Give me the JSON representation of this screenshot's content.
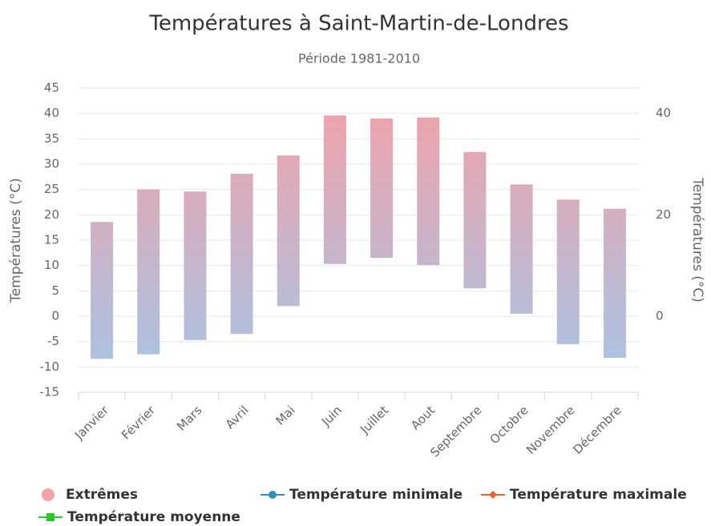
{
  "chart_data": {
    "type": "columnrange",
    "title": "Températures à Saint-Martin-de-Londres",
    "subtitle": "Période 1981-2010",
    "y_label": "Températures (°C)",
    "y2_label": "Températures (°C)",
    "categories": [
      "Janvier",
      "Février",
      "Mars",
      "Avril",
      "Mai",
      "Juin",
      "Juillet",
      "Aout",
      "Septembre",
      "Octobre",
      "Novembre",
      "Décembre"
    ],
    "series": [
      {
        "name": "Extrêmes",
        "color": "#f7a2a6",
        "gradient": [
          "#f4a0a6",
          "#a3c6e8"
        ],
        "low": [
          -8.4,
          -7.5,
          -4.7,
          -3.5,
          2,
          10.3,
          11.5,
          10.1,
          5.5,
          0.5,
          -5.5,
          -8.2
        ],
        "high": [
          18.6,
          25,
          24.6,
          28.1,
          31.7,
          39.6,
          39,
          39.2,
          32.4,
          26,
          23,
          21.2
        ]
      },
      {
        "name": "Température minimale",
        "color": "#2f8fc4",
        "marker": "circle"
      },
      {
        "name": "Température maximale",
        "color": "#e8622a",
        "marker": "diamond"
      },
      {
        "name": "Température moyenne",
        "color": "#22cc22",
        "marker": "square"
      }
    ],
    "ylim": [
      -15,
      45
    ],
    "yticks": [
      -15,
      -10,
      -5,
      0,
      5,
      10,
      15,
      20,
      25,
      30,
      35,
      40,
      45
    ],
    "y2lim": [
      -15,
      45
    ],
    "y2ticks": [
      0,
      20,
      40
    ],
    "grid": true
  }
}
